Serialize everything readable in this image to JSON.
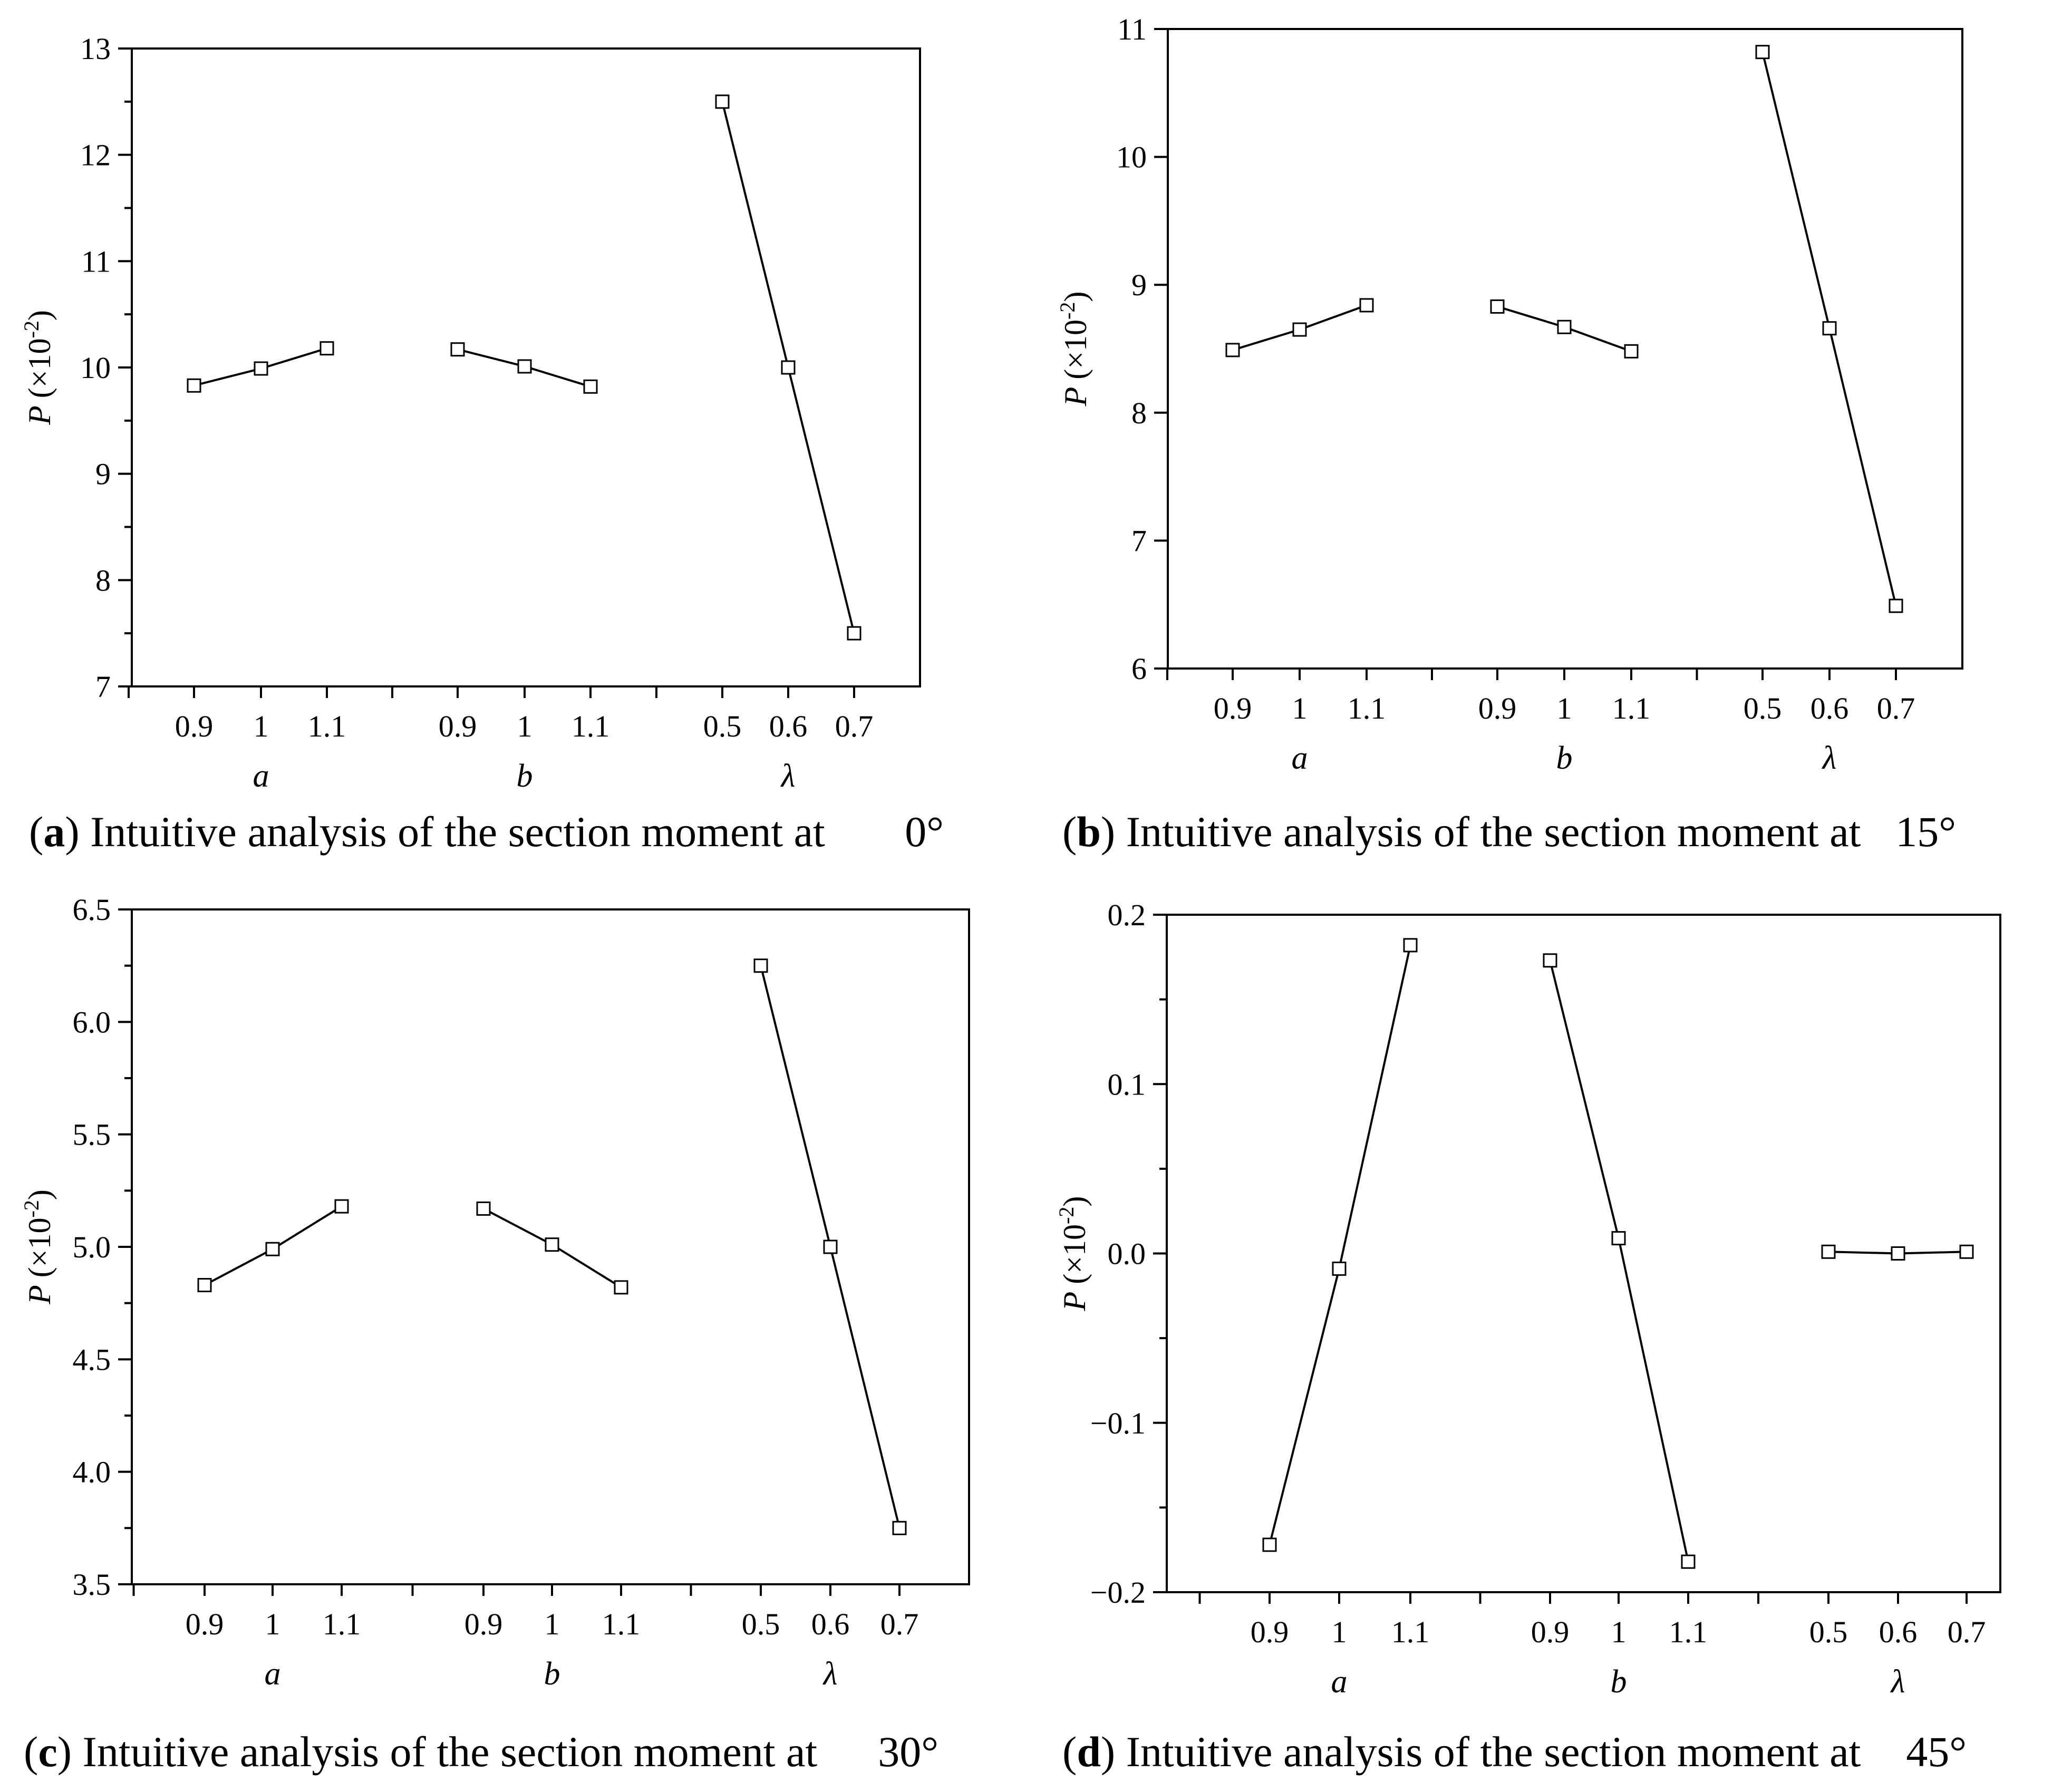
{
  "chart_data": [
    {
      "type": "line",
      "caption": {
        "letter": "a",
        "text": "Intuitive analysis of the section moment at",
        "angle": "0°"
      },
      "ylabel": {
        "var": "P",
        "text": "(×10",
        "exp": "-2",
        "close": ")"
      },
      "ylim": [
        7,
        13
      ],
      "yticks": [
        "7",
        "8",
        "9",
        "10",
        "11",
        "12",
        "13"
      ],
      "y_minor": true,
      "groups": [
        {
          "name": "a",
          "x": [
            "0.9",
            "1",
            "1.1"
          ],
          "values": [
            9.83,
            9.99,
            10.18
          ]
        },
        {
          "name": "b",
          "x": [
            "0.9",
            "1",
            "1.1"
          ],
          "values": [
            10.17,
            10.01,
            9.82
          ]
        },
        {
          "name": "λ",
          "x": [
            "0.5",
            "0.6",
            "0.7"
          ],
          "values": [
            12.5,
            10.0,
            7.5
          ]
        }
      ]
    },
    {
      "type": "line",
      "caption": {
        "letter": "b",
        "text": "Intuitive analysis of the section moment at",
        "angle": "15°"
      },
      "ylabel": {
        "var": "P",
        "text": "(×10",
        "exp": "-2",
        "close": ")"
      },
      "ylim": [
        6,
        11
      ],
      "yticks": [
        "6",
        "7",
        "8",
        "9",
        "10",
        "11"
      ],
      "y_minor": false,
      "groups": [
        {
          "name": "a",
          "x": [
            "0.9",
            "1",
            "1.1"
          ],
          "values": [
            8.49,
            8.65,
            8.84
          ]
        },
        {
          "name": "b",
          "x": [
            "0.9",
            "1",
            "1.1"
          ],
          "values": [
            8.83,
            8.67,
            8.48
          ]
        },
        {
          "name": "λ",
          "x": [
            "0.5",
            "0.6",
            "0.7"
          ],
          "values": [
            10.82,
            8.66,
            6.49
          ]
        }
      ]
    },
    {
      "type": "line",
      "caption": {
        "letter": "c",
        "text": "Intuitive analysis of the section moment at",
        "angle": "30°"
      },
      "ylabel": {
        "var": "P",
        "text": "(×10",
        "exp": "-2",
        "close": ")"
      },
      "ylim": [
        3.5,
        6.5
      ],
      "yticks": [
        "3.5",
        "4.0",
        "4.5",
        "5.0",
        "5.5",
        "6.0",
        "6.5"
      ],
      "y_minor": true,
      "groups": [
        {
          "name": "a",
          "x": [
            "0.9",
            "1",
            "1.1"
          ],
          "values": [
            4.83,
            4.99,
            5.18
          ]
        },
        {
          "name": "b",
          "x": [
            "0.9",
            "1",
            "1.1"
          ],
          "values": [
            5.17,
            5.01,
            4.82
          ]
        },
        {
          "name": "λ",
          "x": [
            "0.5",
            "0.6",
            "0.7"
          ],
          "values": [
            6.25,
            5.0,
            3.75
          ]
        }
      ]
    },
    {
      "type": "line",
      "caption": {
        "letter": "d",
        "text": "Intuitive analysis of the section moment at",
        "angle": "45°"
      },
      "ylabel": {
        "var": "P",
        "text": "(×10",
        "exp": "-2",
        "close": ")"
      },
      "ylim": [
        -0.2,
        0.2
      ],
      "yticks": [
        "−0.2",
        "−0.1",
        "0.0",
        "0.1",
        "0.2"
      ],
      "y_minor": true,
      "groups": [
        {
          "name": "a",
          "x": [
            "0.9",
            "1",
            "1.1"
          ],
          "values": [
            -0.172,
            -0.009,
            0.182
          ]
        },
        {
          "name": "b",
          "x": [
            "0.9",
            "1",
            "1.1"
          ],
          "values": [
            0.173,
            0.009,
            -0.182
          ]
        },
        {
          "name": "λ",
          "x": [
            "0.5",
            "0.6",
            "0.7"
          ],
          "values": [
            0.001,
            0.0,
            0.001
          ]
        }
      ]
    }
  ]
}
